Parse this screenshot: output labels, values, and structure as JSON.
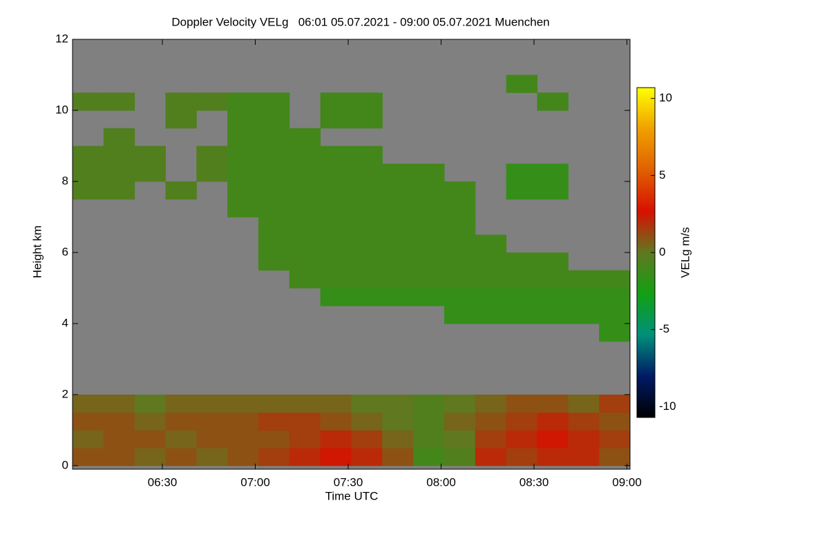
{
  "chart_data": {
    "type": "heatmap",
    "title": "Doppler Velocity VELg   06:01 05.07.2021 - 09:00 05.07.2021 Muenchen",
    "x_label": "Time UTC",
    "y_label": "Height km",
    "colorbar_label": "VELg m/s",
    "xlim": [
      361,
      541
    ],
    "xticks": [
      {
        "value": 390,
        "label": "06:30"
      },
      {
        "value": 420,
        "label": "07:00"
      },
      {
        "value": 450,
        "label": "07:30"
      },
      {
        "value": 480,
        "label": "08:00"
      },
      {
        "value": 510,
        "label": "08:30"
      },
      {
        "value": 540,
        "label": "09:00"
      }
    ],
    "ylim": [
      -0.1,
      12
    ],
    "yticks": [
      0,
      2,
      4,
      6,
      8,
      10,
      12
    ],
    "clim": [
      -10.7,
      10.7
    ],
    "cticks": [
      -10,
      -5,
      0,
      5,
      10
    ],
    "colorscale": [
      "#000000",
      "#001a66",
      "#00907a",
      "#12a012",
      "#607820",
      "#d81000",
      "#e06000",
      "#f0a000",
      "#ffff00"
    ],
    "xbins": [
      361,
      371,
      381,
      391,
      401,
      411,
      421,
      431,
      441,
      451,
      461,
      471,
      481,
      491,
      501,
      511,
      521,
      531,
      541
    ],
    "ybins": [
      0,
      0.5,
      1,
      1.5,
      2,
      2.5,
      3,
      3.5,
      4,
      4.5,
      5,
      5.5,
      6,
      6.5,
      7,
      7.5,
      8,
      8.5,
      9,
      9.5,
      10,
      10.5,
      11,
      11.5,
      12
    ],
    "z": [
      [
        1,
        1,
        0.5,
        1,
        0.5,
        1,
        1.5,
        2,
        2.5,
        2,
        1,
        -1,
        -0.5,
        2,
        1.5,
        2,
        2,
        1
      ],
      [
        0.5,
        1,
        1,
        0.5,
        1,
        1,
        1,
        1.5,
        2,
        1.5,
        0.5,
        -0.5,
        0,
        1.5,
        2,
        2.5,
        2,
        1.5
      ],
      [
        1,
        1,
        0.5,
        1,
        1,
        1,
        1.5,
        1.5,
        1,
        0.5,
        0,
        -0.5,
        0.5,
        1,
        1.5,
        2,
        1.5,
        1
      ],
      [
        0.5,
        0.5,
        0,
        0.5,
        0.5,
        0.5,
        0.5,
        0.5,
        0.5,
        0,
        0,
        -0.5,
        0,
        0.5,
        1,
        1,
        0.5,
        1.5
      ],
      [
        null,
        null,
        null,
        null,
        null,
        null,
        null,
        null,
        null,
        null,
        null,
        null,
        null,
        null,
        null,
        null,
        null,
        null
      ],
      [
        null,
        null,
        null,
        null,
        null,
        null,
        null,
        null,
        null,
        null,
        null,
        null,
        null,
        null,
        null,
        null,
        null,
        null
      ],
      [
        null,
        null,
        null,
        null,
        null,
        null,
        null,
        null,
        null,
        null,
        null,
        null,
        null,
        null,
        null,
        null,
        null,
        null
      ],
      [
        null,
        null,
        null,
        null,
        null,
        null,
        null,
        null,
        null,
        null,
        null,
        null,
        null,
        null,
        null,
        null,
        null,
        -1.5
      ],
      [
        null,
        null,
        null,
        null,
        null,
        null,
        null,
        null,
        null,
        null,
        null,
        null,
        -1.5,
        -1.5,
        -1.5,
        -1.5,
        -1.5,
        -1.5
      ],
      [
        null,
        null,
        null,
        null,
        null,
        null,
        null,
        null,
        -1.5,
        -1.5,
        -1.5,
        -1.5,
        -1.5,
        -1.5,
        -1.5,
        -1.5,
        -1.5,
        -1.5
      ],
      [
        null,
        null,
        null,
        null,
        null,
        null,
        null,
        -1,
        -1,
        -1,
        -1,
        -1,
        -1,
        -1,
        -1,
        -1,
        -1,
        -1
      ],
      [
        null,
        null,
        null,
        null,
        null,
        null,
        -1,
        -1,
        -1,
        -1,
        -1,
        -1,
        -1,
        -1,
        -1,
        -1,
        null,
        null
      ],
      [
        null,
        null,
        null,
        null,
        null,
        null,
        -1,
        -1,
        -1,
        -1,
        -1,
        -1,
        -1,
        -1,
        null,
        null,
        null,
        null
      ],
      [
        null,
        null,
        null,
        null,
        null,
        null,
        -1,
        -1,
        -1,
        -1,
        -1,
        -1,
        -1,
        null,
        null,
        null,
        null,
        null
      ],
      [
        null,
        null,
        null,
        null,
        null,
        -1,
        -1,
        -1,
        -1,
        -1,
        -1,
        -1,
        -1,
        null,
        null,
        null,
        null,
        null
      ],
      [
        -0.5,
        -0.5,
        null,
        -0.5,
        null,
        -1,
        -1,
        -1,
        -1,
        -1,
        -1,
        -1,
        -1,
        null,
        -1.5,
        -1.5,
        null,
        null
      ],
      [
        -0.5,
        -0.5,
        -0.5,
        null,
        -0.5,
        -1,
        -1,
        -1,
        -1,
        -1,
        -1,
        -1,
        null,
        null,
        -1.5,
        -1.5,
        null,
        null
      ],
      [
        -0.5,
        -0.5,
        -0.5,
        null,
        -0.5,
        -1,
        -1,
        -1,
        -1,
        -1,
        null,
        null,
        null,
        null,
        null,
        null,
        null,
        null
      ],
      [
        null,
        -0.5,
        null,
        null,
        null,
        -1,
        -1,
        -1,
        null,
        null,
        null,
        null,
        null,
        null,
        null,
        null,
        null,
        null
      ],
      [
        null,
        null,
        null,
        -0.5,
        null,
        -1,
        -1,
        null,
        -1,
        -1,
        null,
        null,
        null,
        null,
        null,
        null,
        null,
        null
      ],
      [
        -0.5,
        -0.5,
        null,
        -0.5,
        -0.5,
        -1,
        -1,
        null,
        -1,
        -1,
        null,
        null,
        null,
        null,
        null,
        -1,
        null,
        null
      ],
      [
        null,
        null,
        null,
        null,
        null,
        null,
        null,
        null,
        null,
        null,
        null,
        null,
        null,
        null,
        -1,
        null,
        null,
        null
      ],
      [
        null,
        null,
        null,
        null,
        null,
        null,
        null,
        null,
        null,
        null,
        null,
        null,
        null,
        null,
        null,
        null,
        null,
        null
      ],
      [
        null,
        null,
        null,
        null,
        null,
        null,
        null,
        null,
        null,
        null,
        null,
        null,
        null,
        null,
        null,
        null,
        null,
        null
      ]
    ]
  }
}
